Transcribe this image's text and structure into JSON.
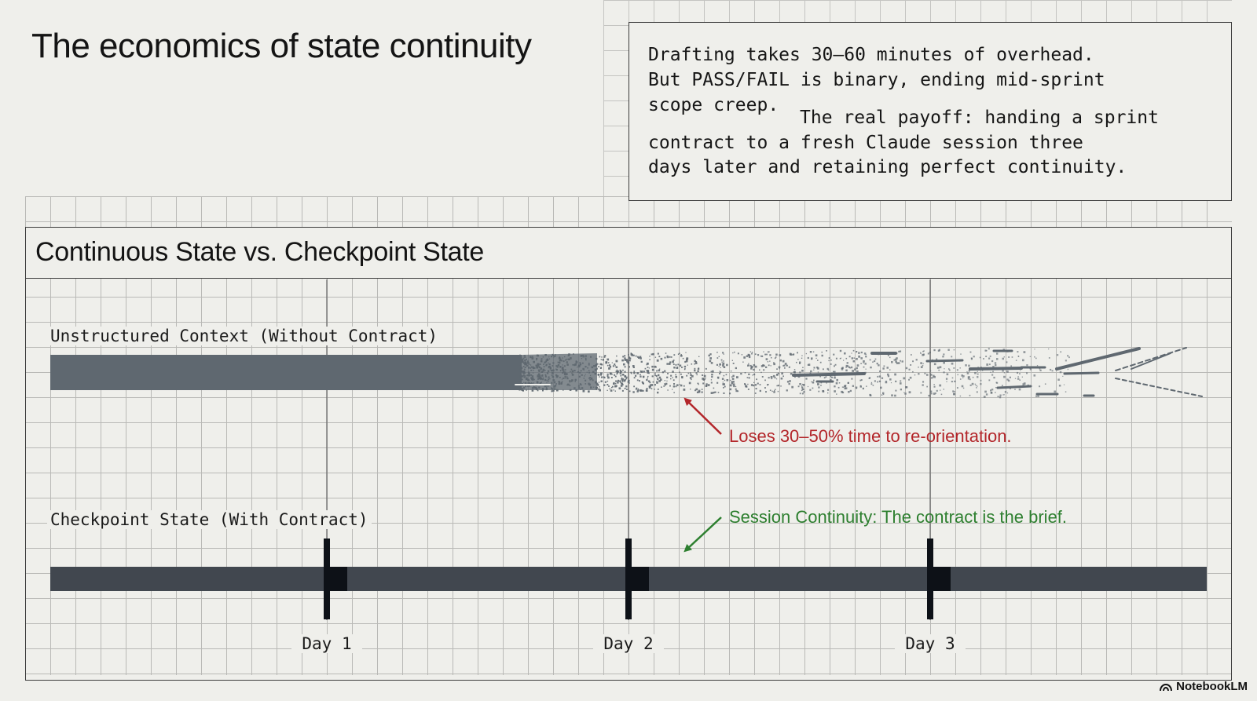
{
  "title": "The economics of state continuity",
  "note": {
    "lines": [
      "Drafting takes 30–60 minutes of overhead.",
      "But PASS/FAIL is binary, ending mid-sprint",
      "scope creep.",
      "The real payoff: handing a sprint",
      "contract to a fresh Claude session three",
      "days later and retaining perfect continuity."
    ]
  },
  "panel": {
    "title": "Continuous State vs. Checkpoint State",
    "unstructured_label": "Unstructured Context (Without Contract)",
    "checkpoint_label": "Checkpoint State (With Contract)",
    "loss_annotation": "Loses 30–50% time to re-orientation.",
    "continuity_annotation": "Session Continuity: The contract is the brief.",
    "days": [
      "Day 1",
      "Day 2",
      "Day 3"
    ]
  },
  "colors": {
    "unstructured_bar": "#5f6870",
    "checkpoint_bar": "#41474f",
    "checkpoint_marker": "#0d1117",
    "loss": "#b3262a",
    "continuity": "#2d7f2f"
  },
  "branding": {
    "name": "NotebookLM",
    "icon": "notebooklm-logo-icon"
  }
}
